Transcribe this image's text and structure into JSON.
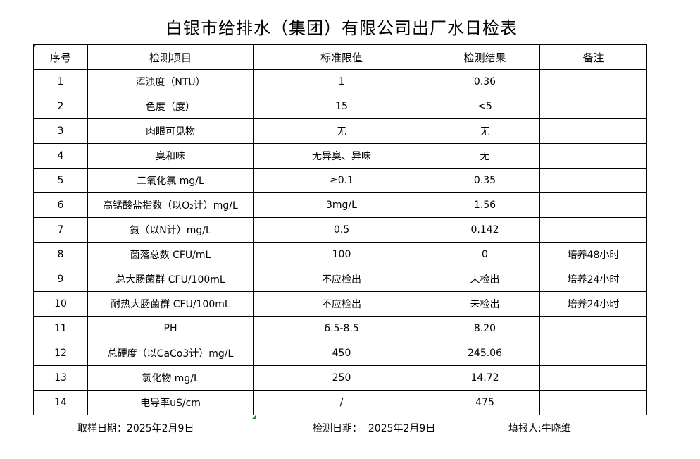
{
  "title": "白银市给排水（集团）有限公司出厂水日检表",
  "headers": [
    "序号",
    "检测项目",
    "标准限值",
    "检测结果",
    "备注"
  ],
  "rows": [
    [
      "1",
      "浑浊度（NTU）",
      "1",
      "0.36",
      ""
    ],
    [
      "2",
      "色度（度）",
      "15",
      "<5",
      ""
    ],
    [
      "3",
      "肉眼可见物",
      "无",
      "无",
      ""
    ],
    [
      "4",
      "臭和味",
      "无异臭、异味",
      "无",
      ""
    ],
    [
      "5",
      "二氧化氯 mg/L",
      "≥0.1",
      "0.35",
      ""
    ],
    [
      "6",
      "高锰酸盐指数（以O₂计）mg/L",
      "3mg/L",
      "1.56",
      ""
    ],
    [
      "7",
      "氨（以N计）mg/L",
      "0.5",
      "0.142",
      ""
    ],
    [
      "8",
      "菌落总数 CFU/mL",
      "100",
      "0",
      "培养48小时"
    ],
    [
      "9",
      "总大肠菌群 CFU/100mL",
      "不应检出",
      "未检出",
      "培养24小时"
    ],
    [
      "10",
      "耐热大肠菌群 CFU/100mL",
      "不应检出",
      "未检出",
      "培养24小时"
    ],
    [
      "11",
      "PH",
      "6.5-8.5",
      "8.20",
      ""
    ],
    [
      "12",
      "总硬度（以CaCo3计）mg/L",
      "450",
      "245.06",
      ""
    ],
    [
      "13",
      "氯化物 mg/L",
      "250",
      "14.72",
      ""
    ],
    [
      "14",
      "电导率uS/cm",
      "/",
      "475",
      ""
    ]
  ],
  "footer": {
    "sample_date": "取样日期：2025年2月9日",
    "test_date": "检测日期：  2025年2月9日",
    "reporter": "填报人:牛晓维"
  }
}
